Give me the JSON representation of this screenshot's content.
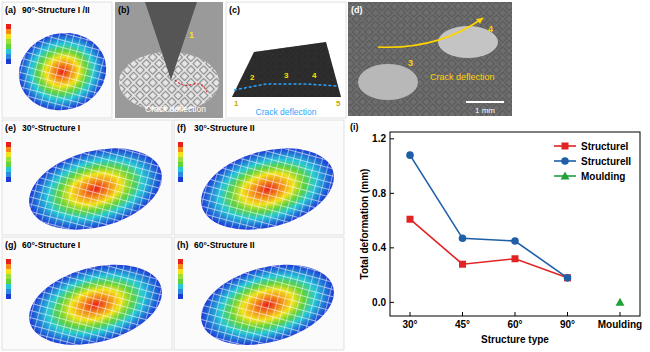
{
  "panels": [
    {
      "label": "(a)",
      "title": "90°-Structure I /II"
    },
    {
      "label": "(b)",
      "annotation": "Crack deflection",
      "markers": [
        "1"
      ]
    },
    {
      "label": "(c)",
      "annotation": "Crack deflection",
      "markers": [
        "1",
        "2",
        "3",
        "4",
        "5"
      ]
    },
    {
      "label": "(d)",
      "annotation": "Crack deflection",
      "markers": [
        "3",
        "4"
      ],
      "scale_bar": "1 mm"
    },
    {
      "label": "(e)",
      "title": "30°-Structure I"
    },
    {
      "label": "(f)",
      "title": "30°-Structure II"
    },
    {
      "label": "(g)",
      "title": "60°-Structure I"
    },
    {
      "label": "(h)",
      "title": "60°-Structure II"
    },
    {
      "label": "(i)"
    }
  ],
  "chart_data": {
    "type": "line",
    "x_label": "Structure type",
    "y_label": "Total deformation (mm)",
    "categories": [
      "30°",
      "45°",
      "60°",
      "90°",
      "Moulding"
    ],
    "series": [
      {
        "name": "StructureI",
        "color": "#e02424",
        "marker": "square",
        "values": [
          0.61,
          0.28,
          0.32,
          0.18,
          null
        ]
      },
      {
        "name": "StructureII",
        "color": "#1f5fa8",
        "marker": "circle",
        "values": [
          1.08,
          0.47,
          0.45,
          0.18,
          null
        ]
      },
      {
        "name": "Moulding",
        "color": "#22a03a",
        "marker": "triangle",
        "values": [
          null,
          null,
          null,
          null,
          0.0
        ]
      }
    ],
    "ylim": [
      -0.1,
      1.25
    ],
    "yticks": [
      {
        "value": 0,
        "label": "0.0"
      },
      {
        "value": 0.4,
        "label": "0.4"
      },
      {
        "value": 0.8,
        "label": "0.8"
      },
      {
        "value": 1.2,
        "label": "1.2"
      }
    ],
    "legend": "upper right",
    "grid": false
  }
}
